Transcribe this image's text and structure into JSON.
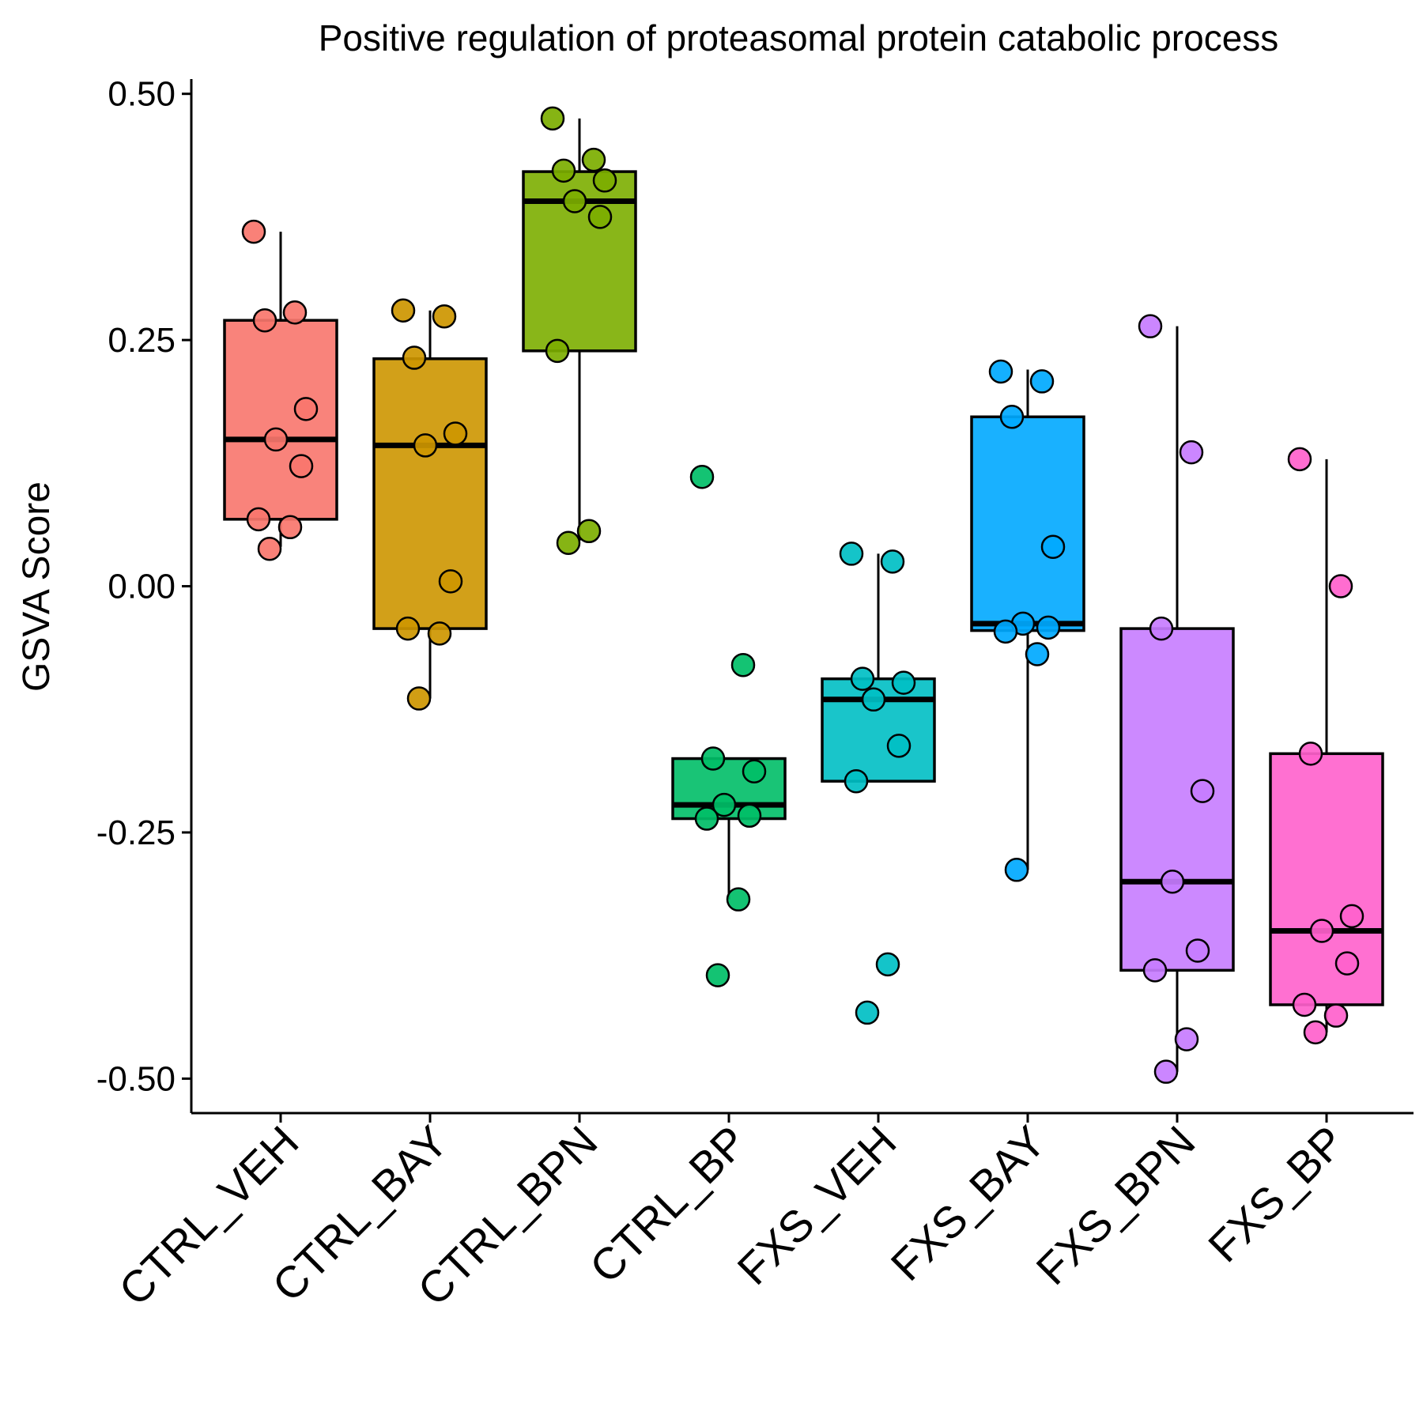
{
  "chart_data": {
    "type": "box",
    "title": "Positive regulation of proteasomal protein catabolic process",
    "xlabel": "",
    "ylabel": "GSVA Score",
    "ylim": [
      -0.535,
      0.515
    ],
    "y_ticks": [
      0.5,
      0.25,
      0.0,
      -0.25,
      -0.5
    ],
    "y_tick_labels": [
      "0.50",
      "0.25",
      "0.00",
      "-0.25",
      "-0.50"
    ],
    "grid": false,
    "legend": "none",
    "categories": [
      "CTRL_VEH",
      "CTRL_BAY",
      "CTRL_BPN",
      "CTRL_BP",
      "FXS_VEH",
      "FXS_BAY",
      "FXS_BPN",
      "FXS_BP"
    ],
    "colors": [
      "#F8766D",
      "#CD9600",
      "#7CAE00",
      "#00BE67",
      "#00BFC4",
      "#00A9FF",
      "#C77CFF",
      "#FF61CC"
    ],
    "boxes": [
      {
        "group": "CTRL_VEH",
        "lower_whisker": 0.04,
        "q1": 0.068,
        "median": 0.149,
        "q3": 0.27,
        "upper_whisker": 0.36
      },
      {
        "group": "CTRL_BAY",
        "lower_whisker": -0.114,
        "q1": -0.043,
        "median": 0.143,
        "q3": 0.231,
        "upper_whisker": 0.28
      },
      {
        "group": "CTRL_BPN",
        "lower_whisker": 0.046,
        "q1": 0.239,
        "median": 0.391,
        "q3": 0.421,
        "upper_whisker": 0.475
      },
      {
        "group": "CTRL_BP",
        "lower_whisker": -0.318,
        "q1": -0.236,
        "median": -0.222,
        "q3": -0.175,
        "upper_whisker": -0.175
      },
      {
        "group": "FXS_VEH",
        "lower_whisker": -0.198,
        "q1": -0.198,
        "median": -0.115,
        "q3": -0.094,
        "upper_whisker": 0.033
      },
      {
        "group": "FXS_BAY",
        "lower_whisker": -0.288,
        "q1": -0.045,
        "median": -0.038,
        "q3": 0.172,
        "upper_whisker": 0.22
      },
      {
        "group": "FXS_BPN",
        "lower_whisker": -0.493,
        "q1": -0.39,
        "median": -0.3,
        "q3": -0.043,
        "upper_whisker": 0.264
      },
      {
        "group": "FXS_BP",
        "lower_whisker": -0.453,
        "q1": -0.425,
        "median": -0.35,
        "q3": -0.17,
        "upper_whisker": 0.129
      }
    ],
    "points": [
      [
        0.36,
        0.278,
        0.27,
        0.18,
        0.149,
        0.122,
        0.068,
        0.06,
        0.038
      ],
      [
        0.28,
        0.274,
        0.232,
        0.155,
        0.143,
        0.005,
        -0.043,
        -0.048,
        -0.114
      ],
      [
        0.475,
        0.433,
        0.422,
        0.412,
        0.391,
        0.375,
        0.239,
        0.056,
        0.044
      ],
      [
        0.111,
        -0.08,
        -0.175,
        -0.188,
        -0.222,
        -0.233,
        -0.236,
        -0.318,
        -0.395
      ],
      [
        0.033,
        0.025,
        -0.094,
        -0.098,
        -0.115,
        -0.162,
        -0.198,
        -0.384,
        -0.433
      ],
      [
        0.218,
        0.208,
        0.172,
        0.04,
        -0.038,
        -0.042,
        -0.046,
        -0.069,
        -0.288
      ],
      [
        0.264,
        0.136,
        -0.043,
        -0.208,
        -0.3,
        -0.37,
        -0.39,
        -0.46,
        -0.493
      ],
      [
        0.129,
        0.0,
        -0.17,
        -0.335,
        -0.35,
        -0.383,
        -0.425,
        -0.436,
        -0.453
      ]
    ]
  }
}
